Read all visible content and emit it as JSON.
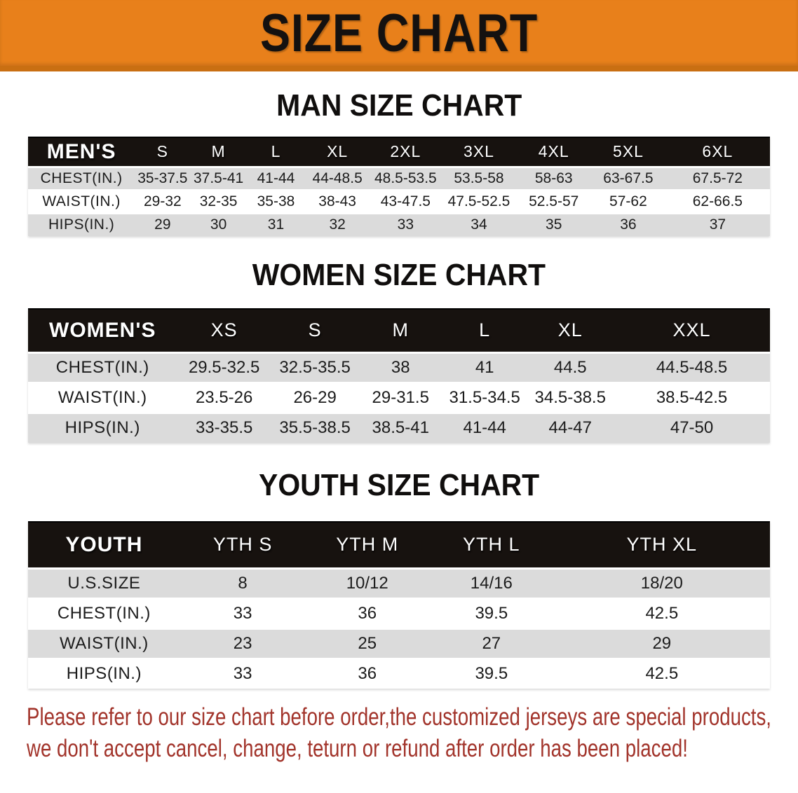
{
  "banner": {
    "title": "SIZE CHART",
    "bg_color": "#E8801B",
    "bg_bottom_strip_color": "#C96F12",
    "text_color": "#141110"
  },
  "tables": [
    {
      "title": "MAN SIZE CHART",
      "header_label": "MEN'S",
      "sizes": [
        "S",
        "M",
        "L",
        "XL",
        "2XL",
        "3XL",
        "4XL",
        "5XL",
        "6XL"
      ],
      "rows": [
        {
          "label": "CHEST(IN.)",
          "values": [
            "35-37.5",
            "37.5-41",
            "41-44",
            "44-48.5",
            "48.5-53.5",
            "53.5-58",
            "58-63",
            "63-67.5",
            "67.5-72"
          ]
        },
        {
          "label": "WAIST(IN.)",
          "values": [
            "29-32",
            "32-35",
            "35-38",
            "38-43",
            "43-47.5",
            "47.5-52.5",
            "52.5-57",
            "57-62",
            "62-66.5"
          ]
        },
        {
          "label": "HIPS(IN.)",
          "values": [
            "29",
            "30",
            "31",
            "32",
            "33",
            "34",
            "35",
            "36",
            "37"
          ]
        }
      ]
    },
    {
      "title": "WOMEN SIZE CHART",
      "header_label": "WOMEN'S",
      "sizes": [
        "XS",
        "S",
        "M",
        "L",
        "XL",
        "XXL"
      ],
      "rows": [
        {
          "label": "CHEST(IN.)",
          "values": [
            "29.5-32.5",
            "32.5-35.5",
            "38",
            "41",
            "44.5",
            "44.5-48.5"
          ]
        },
        {
          "label": "WAIST(IN.)",
          "values": [
            "23.5-26",
            "26-29",
            "29-31.5",
            "31.5-34.5",
            "34.5-38.5",
            "38.5-42.5"
          ]
        },
        {
          "label": "HIPS(IN.)",
          "values": [
            "33-35.5",
            "35.5-38.5",
            "38.5-41",
            "41-44",
            "44-47",
            "47-50"
          ]
        }
      ]
    },
    {
      "title": "YOUTH SIZE CHART",
      "header_label": "YOUTH",
      "sizes": [
        "YTH S",
        "YTH M",
        "YTH L",
        "YTH XL"
      ],
      "rows": [
        {
          "label": "U.S.SIZE",
          "values": [
            "8",
            "10/12",
            "14/16",
            "18/20"
          ]
        },
        {
          "label": "CHEST(IN.)",
          "values": [
            "33",
            "36",
            "39.5",
            "42.5"
          ]
        },
        {
          "label": "WAIST(IN.)",
          "values": [
            "23",
            "25",
            "27",
            "29"
          ]
        },
        {
          "label": "HIPS(IN.)",
          "values": [
            "33",
            "36",
            "39.5",
            "42.5"
          ]
        }
      ]
    }
  ],
  "note": {
    "line1": "Please refer to our size chart before order,the customized jerseys are special products,",
    "line2": "we don't accept cancel, change, teturn or refund after order has been placed!",
    "color": "#A2342B"
  },
  "colors": {
    "header_bar": "#17120f",
    "row_gray": "#DBDBDB",
    "row_white": "#FFFFFF"
  }
}
